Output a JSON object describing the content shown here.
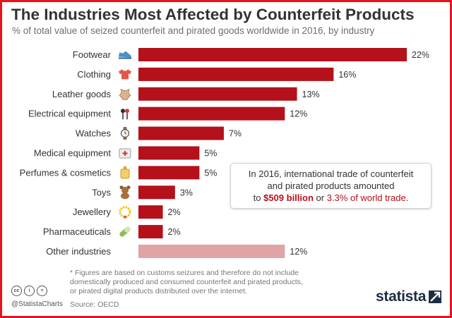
{
  "header": {
    "title": "The Industries Most Affected by Counterfeit Products",
    "subtitle": "% of total value of seized counterfeit and pirated goods worldwide in 2016, by industry"
  },
  "chart_data": {
    "type": "bar",
    "orientation": "horizontal",
    "title": "The Industries Most Affected by Counterfeit Products",
    "subtitle": "% of total value of seized counterfeit and pirated goods worldwide in 2016, by industry",
    "value_suffix": "%",
    "xlim": [
      0,
      22
    ],
    "grid": false,
    "categories": [
      "Footwear",
      "Clothing",
      "Leather goods",
      "Electrical equipment",
      "Watches",
      "Medical equipment",
      "Perfumes & cosmetics",
      "Toys",
      "Jewellery",
      "Pharmaceuticals",
      "Other industries"
    ],
    "values": [
      22,
      16,
      13,
      12,
      7,
      5,
      5,
      3,
      2,
      2,
      12
    ],
    "icons": [
      "sneaker-icon",
      "tshirt-icon",
      "hide-icon",
      "earphones-icon",
      "watch-icon",
      "first-aid-kit-icon",
      "perfume-bottle-icon",
      "teddy-bear-icon",
      "necklace-icon",
      "pill-icon",
      ""
    ],
    "colors": {
      "main": "#b5111b",
      "other": "#e0a3a6"
    }
  },
  "callout": {
    "line1": "In 2016, international trade of counterfeit",
    "line2": "and pirated products amounted",
    "line3_pre": "to",
    "amount": "$509 billion",
    "line3_mid": "or",
    "share": "3.3% of world trade",
    "line3_end": "."
  },
  "footer": {
    "footnote_line1": "* Figures are based on customs seizures and therefore do not include",
    "footnote_line2": "domestically produced and consumed counterfeit and pirated products,",
    "footnote_line3": "or pirated digital products distributed over the internet.",
    "license_badges": [
      "cc",
      "i",
      "="
    ],
    "handle": "@StatistaCharts",
    "source": "Source: OECD",
    "brand": "statista"
  },
  "colors": {
    "frame": "#e8131c",
    "accent": "#b5111b",
    "brand": "#1c2f42"
  }
}
